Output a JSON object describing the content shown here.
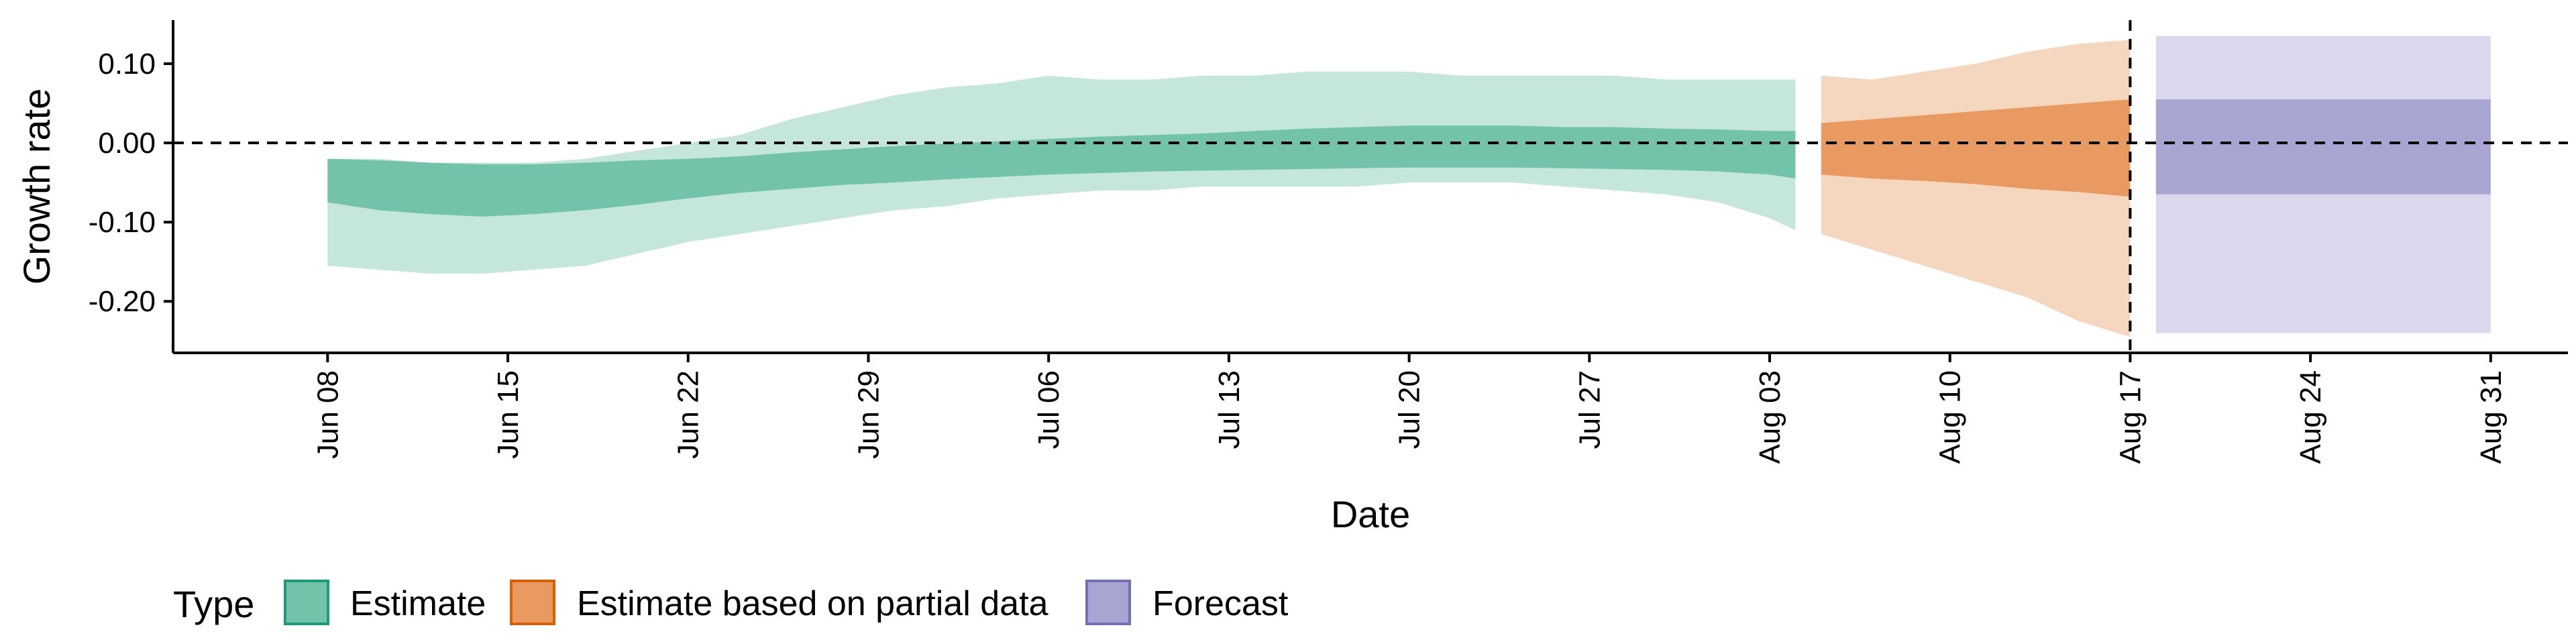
{
  "chart_data": {
    "type": "area",
    "xlabel": "Date",
    "ylabel": "Growth rate",
    "ylim": [
      -0.265,
      0.155
    ],
    "xlim": [
      "2020-06-02",
      "2020-09-03"
    ],
    "y_ticks": [
      0.1,
      0.0,
      -0.1,
      -0.2
    ],
    "y_tick_labels": [
      "0.10",
      "0.00",
      "-0.10",
      "-0.20"
    ],
    "x_ticks": [
      "2020-06-08",
      "2020-06-15",
      "2020-06-22",
      "2020-06-29",
      "2020-07-06",
      "2020-07-13",
      "2020-07-20",
      "2020-07-27",
      "2020-08-03",
      "2020-08-10",
      "2020-08-17",
      "2020-08-24",
      "2020-08-31"
    ],
    "x_tick_labels": [
      "Jun 08",
      "Jun 15",
      "Jun 22",
      "Jun 29",
      "Jul 06",
      "Jul 13",
      "Jul 20",
      "Jul 27",
      "Aug 03",
      "Aug 10",
      "Aug 17",
      "Aug 24",
      "Aug 31"
    ],
    "reference_lines": {
      "horizontal_y": 0.0,
      "vertical_x": "2020-08-17",
      "style": "dashed"
    },
    "legend": {
      "title": "Type",
      "position": "bottom-left",
      "items": [
        {
          "label": "Estimate",
          "fill": "#72C3A9",
          "border": "#1B9E77"
        },
        {
          "label": "Estimate based on partial data",
          "fill": "#E89A60",
          "border": "#D95F02"
        },
        {
          "label": "Forecast",
          "fill": "#A9A5D2",
          "border": "#7570B3"
        }
      ]
    },
    "series": [
      {
        "name": "Estimate",
        "color_inner": "#72C3A9",
        "color_outer": "#C5E7DB",
        "x": [
          "2020-06-08",
          "2020-06-10",
          "2020-06-12",
          "2020-06-14",
          "2020-06-16",
          "2020-06-18",
          "2020-06-20",
          "2020-06-22",
          "2020-06-24",
          "2020-06-26",
          "2020-06-28",
          "2020-06-30",
          "2020-07-02",
          "2020-07-04",
          "2020-07-06",
          "2020-07-08",
          "2020-07-10",
          "2020-07-12",
          "2020-07-14",
          "2020-07-16",
          "2020-07-18",
          "2020-07-20",
          "2020-07-22",
          "2020-07-24",
          "2020-07-26",
          "2020-07-28",
          "2020-07-30",
          "2020-08-01",
          "2020-08-03",
          "2020-08-04"
        ],
        "outer_upper": [
          -0.02,
          -0.02,
          -0.025,
          -0.025,
          -0.025,
          -0.02,
          -0.01,
          0.0,
          0.01,
          0.03,
          0.045,
          0.06,
          0.07,
          0.075,
          0.085,
          0.08,
          0.08,
          0.085,
          0.085,
          0.09,
          0.09,
          0.09,
          0.085,
          0.085,
          0.085,
          0.085,
          0.08,
          0.08,
          0.08,
          0.08
        ],
        "outer_lower": [
          -0.155,
          -0.16,
          -0.165,
          -0.165,
          -0.16,
          -0.155,
          -0.14,
          -0.125,
          -0.115,
          -0.105,
          -0.095,
          -0.085,
          -0.08,
          -0.07,
          -0.065,
          -0.06,
          -0.06,
          -0.055,
          -0.055,
          -0.055,
          -0.055,
          -0.05,
          -0.05,
          -0.05,
          -0.055,
          -0.06,
          -0.065,
          -0.075,
          -0.095,
          -0.11
        ],
        "inner_upper": [
          -0.02,
          -0.022,
          -0.025,
          -0.027,
          -0.027,
          -0.025,
          -0.022,
          -0.02,
          -0.017,
          -0.012,
          -0.008,
          -0.004,
          -0.001,
          0.002,
          0.005,
          0.008,
          0.01,
          0.012,
          0.015,
          0.018,
          0.02,
          0.022,
          0.022,
          0.022,
          0.02,
          0.02,
          0.018,
          0.017,
          0.015,
          0.015
        ],
        "inner_lower": [
          -0.075,
          -0.085,
          -0.09,
          -0.093,
          -0.09,
          -0.085,
          -0.078,
          -0.07,
          -0.063,
          -0.058,
          -0.053,
          -0.05,
          -0.046,
          -0.043,
          -0.04,
          -0.038,
          -0.036,
          -0.035,
          -0.034,
          -0.033,
          -0.032,
          -0.031,
          -0.031,
          -0.031,
          -0.032,
          -0.033,
          -0.034,
          -0.036,
          -0.04,
          -0.045
        ]
      },
      {
        "name": "Estimate based on partial data",
        "color_inner": "#E89A60",
        "color_outer": "#F5D6BF",
        "x": [
          "2020-08-05",
          "2020-08-07",
          "2020-08-09",
          "2020-08-11",
          "2020-08-13",
          "2020-08-15",
          "2020-08-17"
        ],
        "outer_upper": [
          0.085,
          0.08,
          0.09,
          0.1,
          0.115,
          0.125,
          0.13
        ],
        "outer_lower": [
          -0.115,
          -0.135,
          -0.155,
          -0.175,
          -0.195,
          -0.225,
          -0.245
        ],
        "inner_upper": [
          0.025,
          0.03,
          0.035,
          0.04,
          0.045,
          0.05,
          0.055
        ],
        "inner_lower": [
          -0.04,
          -0.045,
          -0.048,
          -0.052,
          -0.058,
          -0.062,
          -0.068
        ]
      },
      {
        "name": "Forecast",
        "color_inner": "#A9A5D2",
        "color_outer": "#DAD8EC",
        "x": [
          "2020-08-18",
          "2020-08-31"
        ],
        "outer_upper": [
          0.135,
          0.135
        ],
        "outer_lower": [
          -0.24,
          -0.24
        ],
        "inner_upper": [
          0.055,
          0.055
        ],
        "inner_lower": [
          -0.065,
          -0.065
        ]
      }
    ]
  }
}
